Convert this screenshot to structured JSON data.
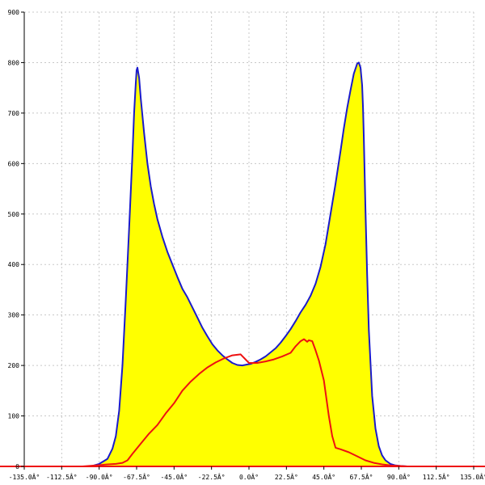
{
  "chart_data": {
    "type": "area",
    "title": "",
    "xlabel": "",
    "ylabel": "",
    "xlim": [
      -135,
      135
    ],
    "ylim": [
      0,
      900
    ],
    "grid": true,
    "x_ticks": [
      {
        "value": -135,
        "label": "-135.0Â°"
      },
      {
        "value": -112.5,
        "label": "-112.5Â°"
      },
      {
        "value": -90,
        "label": "-90.0Â°"
      },
      {
        "value": -67.5,
        "label": "-67.5Â°"
      },
      {
        "value": -45,
        "label": "-45.0Â°"
      },
      {
        "value": -22.5,
        "label": "-22.5Â°"
      },
      {
        "value": 0,
        "label": "0.0Â°"
      },
      {
        "value": 22.5,
        "label": "22.5Â°"
      },
      {
        "value": 45,
        "label": "45.0Â°"
      },
      {
        "value": 67.5,
        "label": "67.5Â°"
      },
      {
        "value": 90,
        "label": "90.0Â°"
      },
      {
        "value": 112.5,
        "label": "112.5Â°"
      },
      {
        "value": 135,
        "label": "135.0Â°"
      }
    ],
    "y_ticks": [
      {
        "value": 0,
        "label": "0"
      },
      {
        "value": 100,
        "label": "100"
      },
      {
        "value": 200,
        "label": "200"
      },
      {
        "value": 300,
        "label": "300"
      },
      {
        "value": 400,
        "label": "400"
      },
      {
        "value": 500,
        "label": "500"
      },
      {
        "value": 600,
        "label": "600"
      },
      {
        "value": 700,
        "label": "700"
      },
      {
        "value": 800,
        "label": "800"
      },
      {
        "value": 900,
        "label": "900"
      }
    ],
    "series": [
      {
        "fill": "#ffff00",
        "color": "#1a1acc",
        "x": [
          -135,
          -95,
          -90,
          -85,
          -82,
          -80,
          -78,
          -76,
          -74,
          -72,
          -70,
          -69,
          -68,
          -67.5,
          -67,
          -66,
          -65,
          -63,
          -61,
          -59,
          -57,
          -55,
          -52,
          -49,
          -46,
          -43,
          -40,
          -37,
          -34,
          -31,
          -28,
          -25,
          -22,
          -19,
          -16,
          -13,
          -10,
          -7,
          -4,
          -1,
          1,
          4,
          7,
          10,
          13,
          16,
          19,
          22,
          25,
          28,
          31,
          34,
          37,
          40,
          43,
          46,
          49,
          52,
          55,
          57,
          59,
          61,
          63,
          65,
          66,
          67,
          68,
          68.5,
          69,
          70,
          71,
          72,
          74,
          76,
          78,
          80,
          82,
          85,
          88,
          91,
          95,
          98,
          135
        ],
        "values": [
          0,
          0,
          5,
          15,
          35,
          60,
          110,
          200,
          330,
          470,
          620,
          700,
          760,
          785,
          790,
          770,
          730,
          660,
          600,
          555,
          520,
          490,
          455,
          425,
          400,
          375,
          352,
          335,
          315,
          295,
          275,
          258,
          242,
          230,
          220,
          212,
          205,
          201,
          200,
          202,
          203,
          207,
          212,
          218,
          226,
          234,
          245,
          258,
          272,
          288,
          305,
          320,
          338,
          362,
          395,
          440,
          500,
          560,
          625,
          670,
          710,
          745,
          778,
          798,
          800,
          790,
          755,
          710,
          650,
          510,
          380,
          270,
          140,
          75,
          40,
          22,
          12,
          5,
          2,
          1,
          0,
          0,
          0
        ]
      },
      {
        "color": "#ee1111",
        "x": [
          -110,
          -100,
          -92,
          -85,
          -80,
          -76,
          -73,
          -70,
          -65,
          -60,
          -55,
          -50,
          -45,
          -40,
          -35,
          -30,
          -25,
          -20,
          -15,
          -10,
          -5,
          0,
          5,
          10,
          15,
          20,
          25,
          28,
          31,
          33,
          35,
          36,
          38,
          40,
          42,
          45,
          48,
          50,
          52,
          55,
          60,
          65,
          70,
          75,
          80,
          85,
          90,
          95,
          100,
          110
        ],
        "values": [
          0,
          0,
          2,
          4,
          5,
          7,
          12,
          25,
          45,
          65,
          82,
          105,
          125,
          150,
          168,
          183,
          196,
          206,
          214,
          220,
          222,
          205,
          205,
          208,
          212,
          218,
          225,
          238,
          248,
          252,
          247,
          250,
          248,
          230,
          210,
          170,
          100,
          60,
          37,
          34,
          28,
          20,
          12,
          7,
          4,
          2,
          1,
          0,
          0,
          0
        ]
      }
    ]
  }
}
